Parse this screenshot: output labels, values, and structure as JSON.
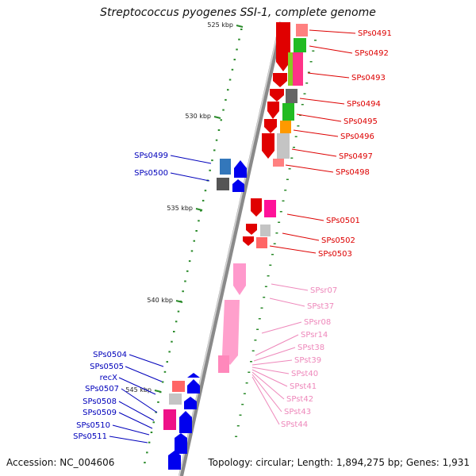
{
  "title": "Streptococcus pyogenes SSI-1, complete genome",
  "footer": {
    "accession": "Accession: NC_004606",
    "summary": "Topology: circular; Length: 1,894,275 bp; Genes: 1,931"
  },
  "colors": {
    "backbone": "#8a8a8a",
    "forward_label": "#dd0000",
    "reverse_label": "#0000bb",
    "rna_label": "#ee88bb",
    "tick_dot": "#2a8a2a"
  },
  "ticks": [
    "525 kbp",
    "530 kbp",
    "535 kbp",
    "540 kbp",
    "545 kbp"
  ],
  "genes_right": [
    "SPs0491",
    "SPs0492",
    "SPs0493",
    "SPs0494",
    "SPs0495",
    "SPs0496",
    "SPs0497",
    "SPs0498",
    "SPs0501",
    "SPs0502",
    "SPs0503"
  ],
  "genes_left": [
    "SPs0499",
    "SPs0500",
    "SPs0504",
    "SPs0505",
    "recX",
    "SPs0507",
    "SPs0508",
    "SPs0509",
    "SPs0510",
    "SPs0511"
  ],
  "rna_genes": [
    "SPsr07",
    "SPst37",
    "SPsr08",
    "SPsr14",
    "SPst38",
    "SPst39",
    "SPst40",
    "SPst41",
    "SPst42",
    "SPst43",
    "SPst44"
  ]
}
